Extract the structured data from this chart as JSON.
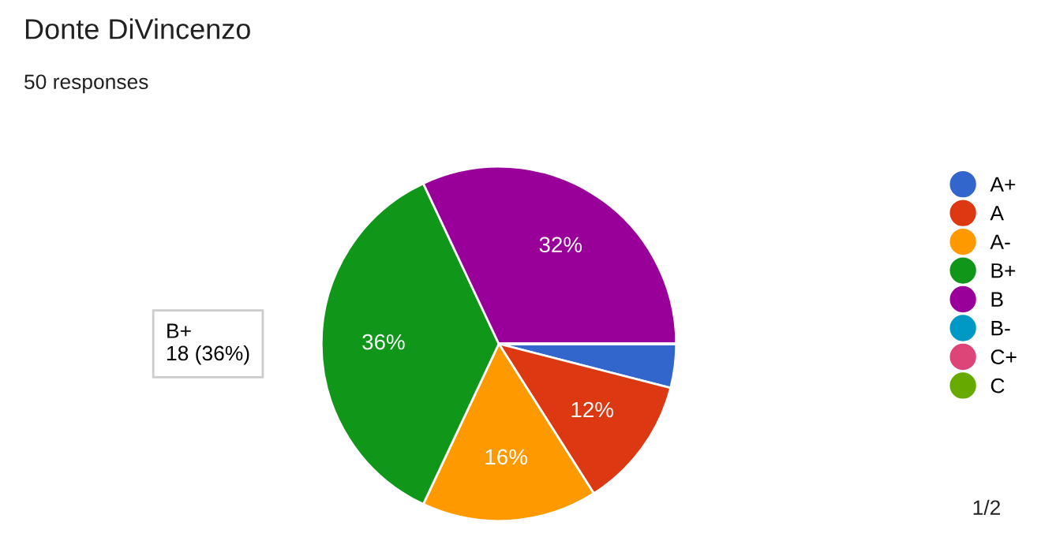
{
  "chart_data": {
    "type": "pie",
    "title": "Donte DiVincenzo",
    "subtitle": "50 responses",
    "categories": [
      "A+",
      "A",
      "A-",
      "B+",
      "B",
      "B-",
      "C+",
      "C"
    ],
    "values": [
      4,
      12,
      16,
      36,
      32,
      0,
      0,
      0
    ],
    "colors": [
      "#3366cc",
      "#dc3912",
      "#ff9900",
      "#109618",
      "#990099",
      "#0099c6",
      "#dd4477",
      "#66aa00"
    ],
    "value_labels": [
      null,
      "12%",
      "16%",
      "36%",
      "32%",
      null,
      null,
      null
    ],
    "annotations": [
      "B+\n18 (36%)",
      "1/2"
    ],
    "legend": "right"
  }
}
